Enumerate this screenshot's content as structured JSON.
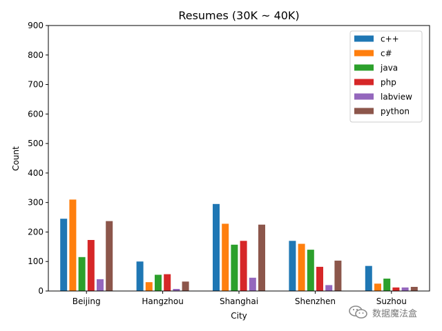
{
  "chart_data": {
    "type": "bar",
    "title": "Resumes (30K ~ 40K)",
    "xlabel": "City",
    "ylabel": "Count",
    "ylim": [
      0,
      900
    ],
    "yticks": [
      0,
      100,
      200,
      300,
      400,
      500,
      600,
      700,
      800,
      900
    ],
    "categories": [
      "Beijing",
      "Hangzhou",
      "Shanghai",
      "Shenzhen",
      "Suzhou"
    ],
    "series": [
      {
        "name": "c++",
        "color": "#1f77b4",
        "values": [
          245,
          100,
          295,
          170,
          85
        ]
      },
      {
        "name": "c#",
        "color": "#ff7f0e",
        "values": [
          310,
          30,
          228,
          160,
          25
        ]
      },
      {
        "name": "java",
        "color": "#2ca02c",
        "values": [
          115,
          55,
          157,
          140,
          42
        ]
      },
      {
        "name": "php",
        "color": "#d62728",
        "values": [
          173,
          57,
          170,
          82,
          12
        ]
      },
      {
        "name": "labview",
        "color": "#9467bd",
        "values": [
          40,
          7,
          45,
          20,
          12
        ]
      },
      {
        "name": "python",
        "color": "#8c564b",
        "values": [
          237,
          32,
          225,
          103,
          14
        ]
      }
    ],
    "legend": "top-right",
    "grid": false
  },
  "watermark": {
    "text": "数据魔法盒",
    "icon": "wechat-icon"
  }
}
